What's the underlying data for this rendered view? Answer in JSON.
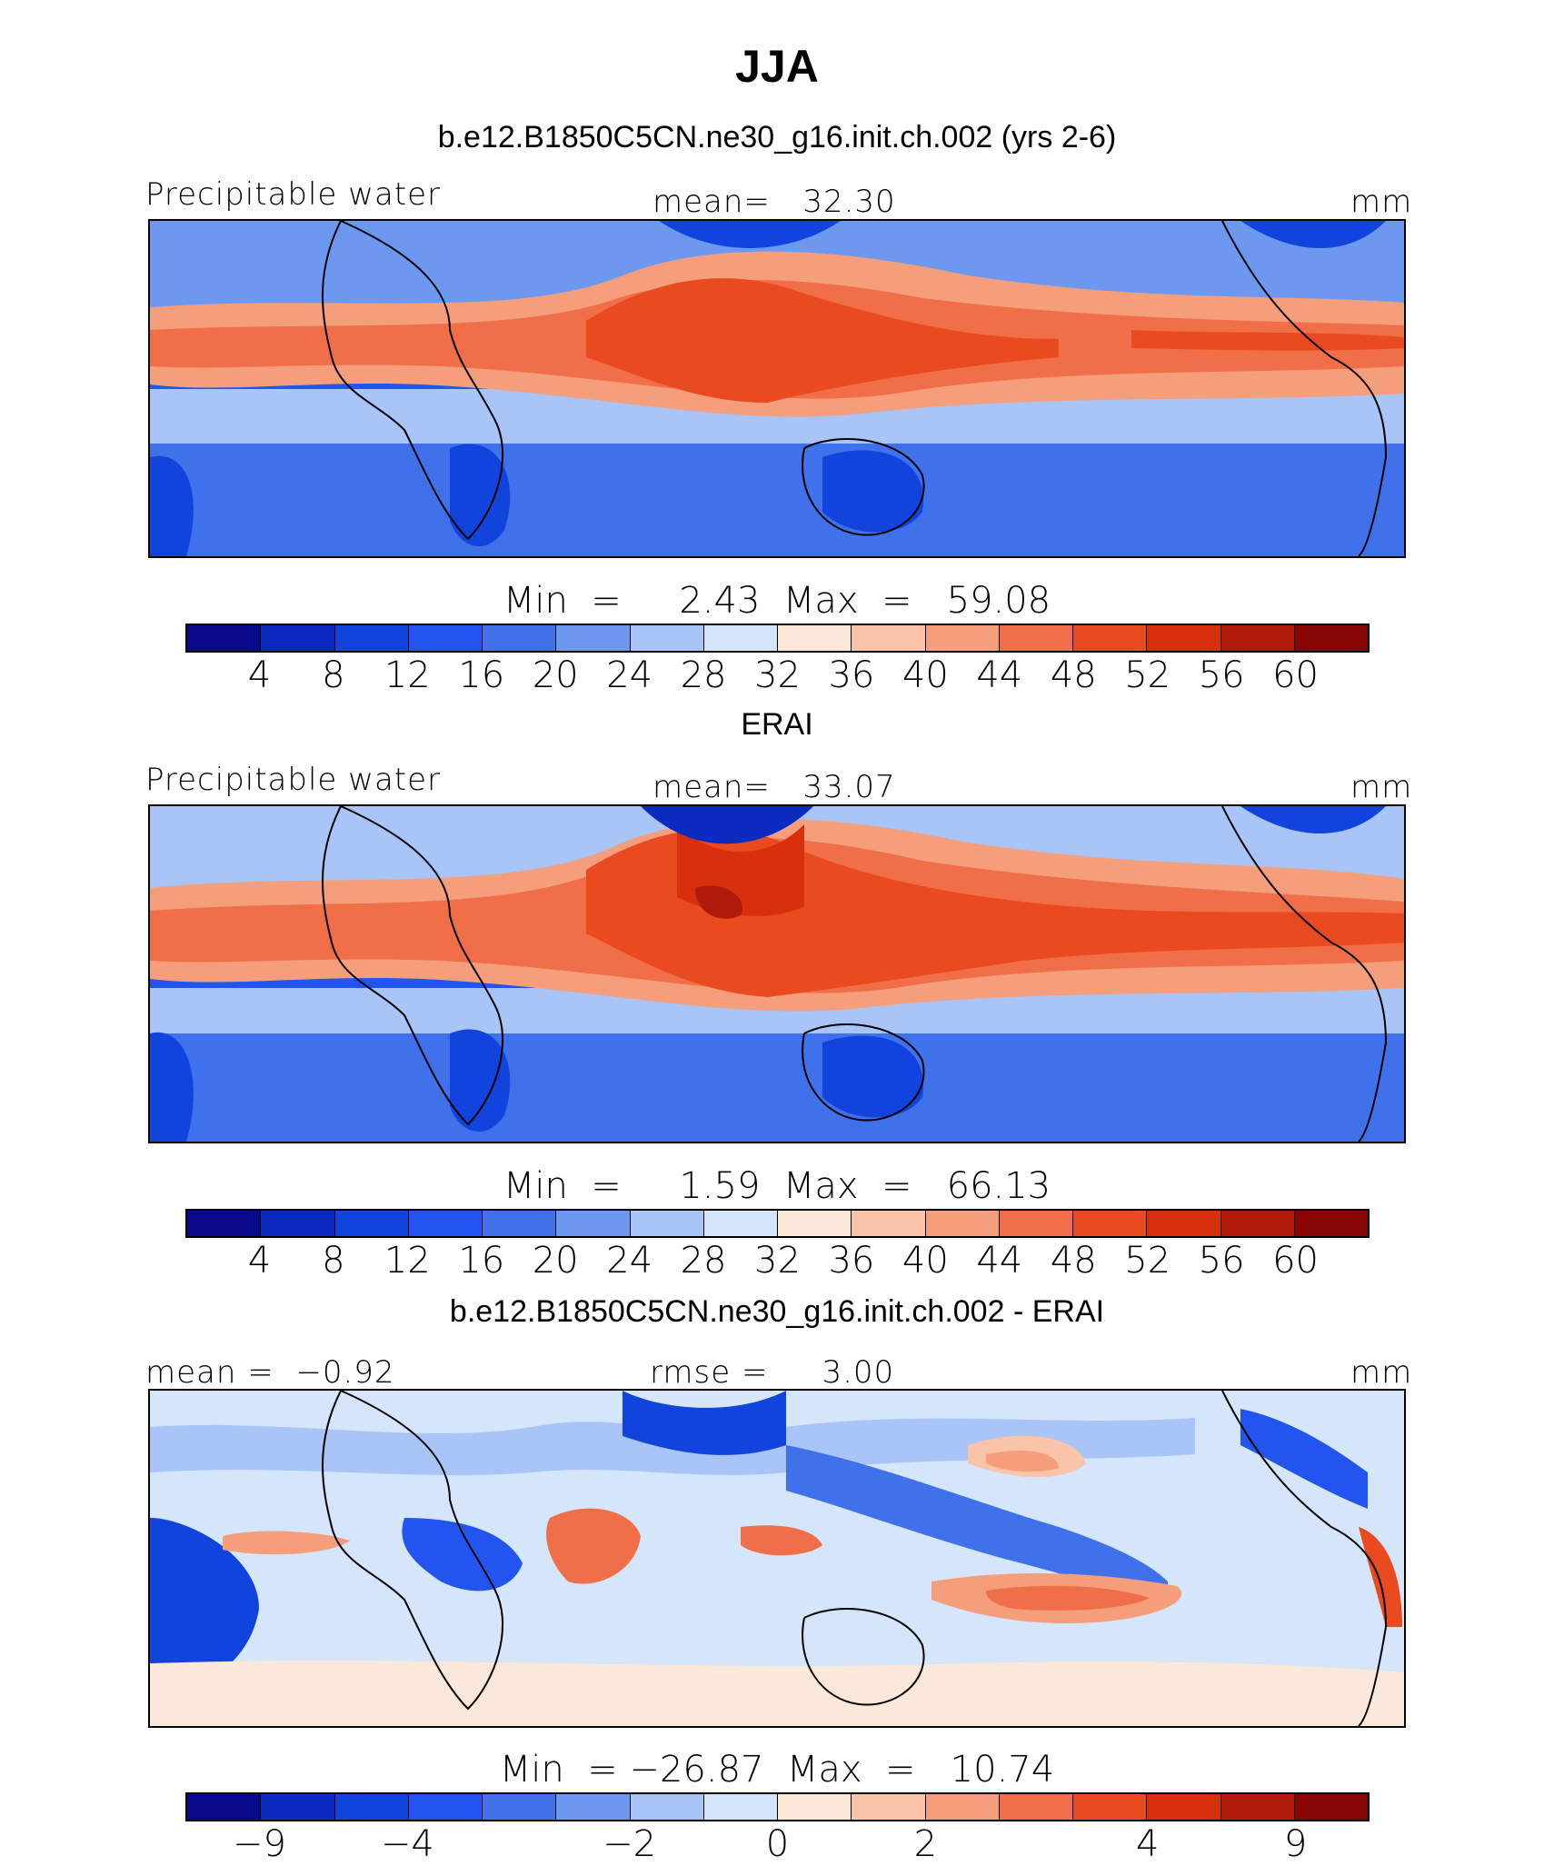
{
  "main_title": "JJA",
  "palette": [
    "#08088a",
    "#0a2bc0",
    "#1144dc",
    "#2255f0",
    "#3f72ea",
    "#6d98f0",
    "#a9c4f6",
    "#d5e5fa",
    "#fce8d8",
    "#f9c4a8",
    "#f59e7c",
    "#f06e48",
    "#ea4a20",
    "#d8300c",
    "#b01a0a",
    "#880505"
  ],
  "chart_data": [
    {
      "type": "heatmap",
      "title": "b.e12.B1850C5CN.ne30_g16.init.ch.002 (yrs 2-6)",
      "left_label": "Precipitable water",
      "center_label": "mean=   32.30",
      "units": "mm",
      "mean": 32.3,
      "min": 2.43,
      "max": 59.08,
      "minmax_text": "Min  =     2.43  Max  =   59.08",
      "levels": [
        4,
        8,
        12,
        16,
        20,
        24,
        28,
        32,
        36,
        40,
        44,
        48,
        52,
        56,
        60
      ],
      "tick_labels": [
        "4",
        "8",
        "12",
        "16",
        "20",
        "24",
        "28",
        "32",
        "36",
        "40",
        "44",
        "48",
        "52",
        "56",
        "60"
      ]
    },
    {
      "type": "heatmap",
      "title": "ERAI",
      "left_label": "Precipitable water",
      "center_label": "mean=   33.07",
      "units": "mm",
      "mean": 33.07,
      "min": 1.59,
      "max": 66.13,
      "minmax_text": "Min  =     1.59  Max  =   66.13",
      "levels": [
        4,
        8,
        12,
        16,
        20,
        24,
        28,
        32,
        36,
        40,
        44,
        48,
        52,
        56,
        60
      ],
      "tick_labels": [
        "4",
        "8",
        "12",
        "16",
        "20",
        "24",
        "28",
        "32",
        "36",
        "40",
        "44",
        "48",
        "52",
        "56",
        "60"
      ]
    },
    {
      "type": "heatmap",
      "title": "b.e12.B1850C5CN.ne30_g16.init.ch.002 - ERAI",
      "left_label": "mean =  −0.92",
      "center_label": "rmse =     3.00",
      "units": "mm",
      "mean": -0.92,
      "rmse": 3.0,
      "min": -26.87,
      "max": 10.74,
      "minmax_text": "Min  = −26.87  Max  =   10.74",
      "levels": [
        -9,
        -4,
        -2,
        0,
        2,
        4,
        9
      ],
      "tick_labels": [
        "−9",
        "−4",
        "−2",
        "0",
        "2",
        "4",
        "9"
      ]
    }
  ]
}
